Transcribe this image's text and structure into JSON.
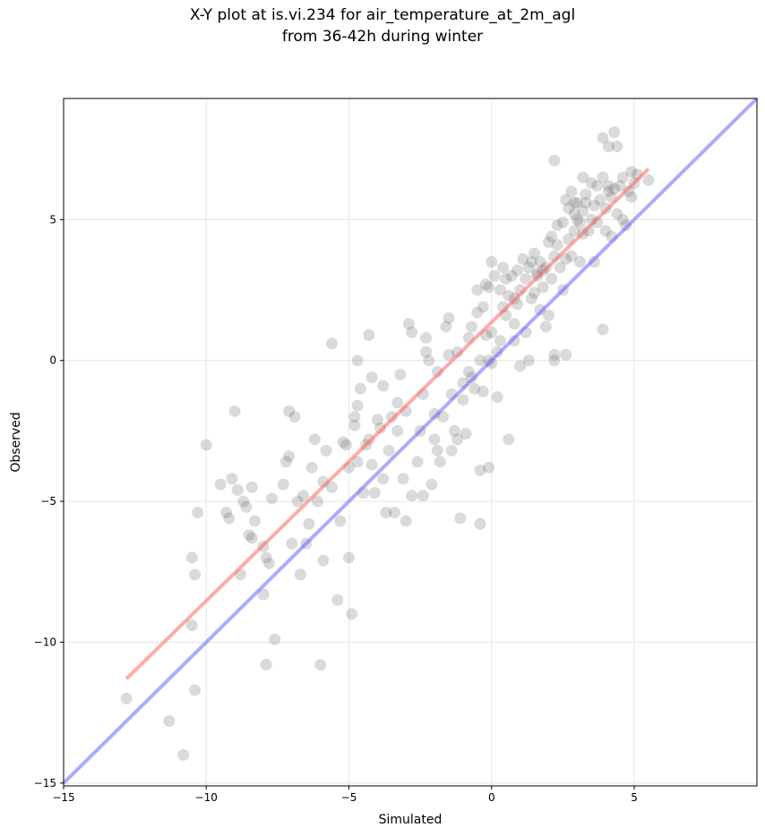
{
  "chart_data": {
    "type": "scatter",
    "title": "X-Y plot at is.vi.234 for air_temperature_at_2m_agl",
    "subtitle": "from 36-42h during winter",
    "xlabel": "Simulated",
    "ylabel": "Observed",
    "xlim": [
      -15,
      9.3
    ],
    "ylim": [
      -15.1,
      9.3
    ],
    "xticks": [
      -15,
      -10,
      -5,
      0,
      5
    ],
    "yticks": [
      -15,
      -10,
      -5,
      0,
      5
    ],
    "grid": true,
    "colors": {
      "points": "#555555",
      "fit_line": "#ff6666",
      "identity_line": "#6666ff",
      "grid": "#e6e6e6"
    },
    "lines": [
      {
        "kind": "fit",
        "x": [
          -12.8,
          5.5
        ],
        "y": [
          -11.3,
          6.8
        ]
      },
      {
        "kind": "identity",
        "x": [
          -15,
          9.3
        ],
        "y": [
          -15,
          9.3
        ]
      }
    ],
    "points": [
      [
        -12.8,
        -12.0
      ],
      [
        -11.3,
        -12.8
      ],
      [
        -10.8,
        -14.0
      ],
      [
        -10.4,
        -11.7
      ],
      [
        -10.5,
        -9.4
      ],
      [
        -10.4,
        -7.6
      ],
      [
        -10.5,
        -7.0
      ],
      [
        -10.3,
        -5.4
      ],
      [
        -10.0,
        -3.0
      ],
      [
        -9.5,
        -4.4
      ],
      [
        -9.3,
        -5.4
      ],
      [
        -9.2,
        -5.6
      ],
      [
        -9.1,
        -4.2
      ],
      [
        -9.0,
        -1.8
      ],
      [
        -8.9,
        -4.6
      ],
      [
        -8.8,
        -7.6
      ],
      [
        -8.7,
        -5.0
      ],
      [
        -8.6,
        -5.2
      ],
      [
        -8.5,
        -6.2
      ],
      [
        -8.4,
        -6.3
      ],
      [
        -8.4,
        -4.5
      ],
      [
        -8.3,
        -5.7
      ],
      [
        -8.0,
        -6.6
      ],
      [
        -8.0,
        -8.3
      ],
      [
        -7.9,
        -7.0
      ],
      [
        -7.8,
        -7.2
      ],
      [
        -7.9,
        -10.8
      ],
      [
        -7.7,
        -4.9
      ],
      [
        -7.6,
        -9.9
      ],
      [
        -7.3,
        -4.4
      ],
      [
        -7.2,
        -3.6
      ],
      [
        -7.1,
        -3.4
      ],
      [
        -7.0,
        -6.5
      ],
      [
        -7.1,
        -1.8
      ],
      [
        -6.9,
        -2.0
      ],
      [
        -6.8,
        -5.0
      ],
      [
        -6.7,
        -7.6
      ],
      [
        -6.6,
        -4.8
      ],
      [
        -6.5,
        -6.5
      ],
      [
        -6.4,
        -5.8
      ],
      [
        -6.3,
        -3.8
      ],
      [
        -6.2,
        -2.8
      ],
      [
        -6.1,
        -5.0
      ],
      [
        -5.9,
        -4.3
      ],
      [
        -5.9,
        -7.1
      ],
      [
        -5.8,
        -3.2
      ],
      [
        -6.0,
        -10.8
      ],
      [
        -5.6,
        -4.5
      ],
      [
        -5.6,
        0.6
      ],
      [
        -5.4,
        -8.5
      ],
      [
        -5.3,
        -5.7
      ],
      [
        -5.2,
        -2.9
      ],
      [
        -5.1,
        -3.0
      ],
      [
        -5.0,
        -3.8
      ],
      [
        -5.0,
        -7.0
      ],
      [
        -4.9,
        -9.0
      ],
      [
        -4.8,
        -2.0
      ],
      [
        -4.8,
        -2.3
      ],
      [
        -4.7,
        -1.6
      ],
      [
        -4.7,
        -3.6
      ],
      [
        -4.7,
        0.0
      ],
      [
        -4.6,
        -1.0
      ],
      [
        -4.5,
        -4.7
      ],
      [
        -4.4,
        -3.0
      ],
      [
        -4.3,
        -2.8
      ],
      [
        -4.2,
        -0.6
      ],
      [
        -4.2,
        -3.7
      ],
      [
        -4.3,
        0.9
      ],
      [
        -4.1,
        -4.7
      ],
      [
        -4.0,
        -2.1
      ],
      [
        -3.9,
        -2.4
      ],
      [
        -3.8,
        -0.9
      ],
      [
        -3.8,
        -4.2
      ],
      [
        -3.7,
        -5.4
      ],
      [
        -3.6,
        -3.2
      ],
      [
        -3.5,
        -2.0
      ],
      [
        -3.4,
        -5.4
      ],
      [
        -3.3,
        -2.5
      ],
      [
        -3.3,
        -1.5
      ],
      [
        -3.2,
        -0.5
      ],
      [
        -3.1,
        -4.2
      ],
      [
        -3.0,
        -1.8
      ],
      [
        -3.0,
        -5.7
      ],
      [
        -2.9,
        1.3
      ],
      [
        -2.8,
        1.0
      ],
      [
        -2.8,
        -4.8
      ],
      [
        -2.6,
        -3.6
      ],
      [
        -2.5,
        -2.5
      ],
      [
        -2.4,
        -4.8
      ],
      [
        -2.4,
        -1.2
      ],
      [
        -2.3,
        0.3
      ],
      [
        -2.3,
        0.8
      ],
      [
        -2.2,
        0.0
      ],
      [
        -2.1,
        -4.4
      ],
      [
        -2.0,
        -2.8
      ],
      [
        -2.0,
        -1.9
      ],
      [
        -1.9,
        -3.2
      ],
      [
        -1.9,
        -0.4
      ],
      [
        -1.8,
        -3.6
      ],
      [
        -1.7,
        -2.0
      ],
      [
        -1.6,
        1.2
      ],
      [
        -1.5,
        0.2
      ],
      [
        -1.5,
        1.5
      ],
      [
        -1.4,
        -1.2
      ],
      [
        -1.4,
        -3.2
      ],
      [
        -1.3,
        -2.5
      ],
      [
        -1.2,
        -2.8
      ],
      [
        -1.2,
        0.3
      ],
      [
        -1.1,
        -5.6
      ],
      [
        -1.0,
        -1.4
      ],
      [
        -1.0,
        -0.8
      ],
      [
        -0.9,
        -2.6
      ],
      [
        -0.8,
        -0.4
      ],
      [
        -0.8,
        0.8
      ],
      [
        -0.7,
        1.2
      ],
      [
        -0.7,
        -0.6
      ],
      [
        -0.6,
        -1.0
      ],
      [
        -0.5,
        1.7
      ],
      [
        -0.5,
        2.5
      ],
      [
        -0.4,
        -3.9
      ],
      [
        -0.4,
        -5.8
      ],
      [
        -0.4,
        0.0
      ],
      [
        -0.3,
        -1.1
      ],
      [
        -0.3,
        1.9
      ],
      [
        -0.2,
        0.9
      ],
      [
        -0.2,
        2.7
      ],
      [
        -0.1,
        0.0
      ],
      [
        -0.1,
        -3.8
      ],
      [
        0.0,
        -0.1
      ],
      [
        0.0,
        1.0
      ],
      [
        0.0,
        3.5
      ],
      [
        0.1,
        3.0
      ],
      [
        0.2,
        0.3
      ],
      [
        0.2,
        -1.3
      ],
      [
        0.3,
        0.7
      ],
      [
        0.3,
        2.5
      ],
      [
        0.4,
        3.3
      ],
      [
        0.5,
        2.9
      ],
      [
        0.5,
        1.6
      ],
      [
        0.6,
        -2.8
      ],
      [
        0.6,
        2.3
      ],
      [
        0.7,
        3.0
      ],
      [
        0.8,
        0.7
      ],
      [
        0.8,
        1.3
      ],
      [
        0.9,
        2.0
      ],
      [
        0.9,
        3.2
      ],
      [
        1.0,
        -0.2
      ],
      [
        1.0,
        2.5
      ],
      [
        1.1,
        3.6
      ],
      [
        1.2,
        1.0
      ],
      [
        1.2,
        2.9
      ],
      [
        1.3,
        0.0
      ],
      [
        1.3,
        3.3
      ],
      [
        1.4,
        2.2
      ],
      [
        1.5,
        3.8
      ],
      [
        1.5,
        2.4
      ],
      [
        1.6,
        3.0
      ],
      [
        1.7,
        1.8
      ],
      [
        1.7,
        3.5
      ],
      [
        1.8,
        2.6
      ],
      [
        1.9,
        1.2
      ],
      [
        1.9,
        3.3
      ],
      [
        2.0,
        4.2
      ],
      [
        2.0,
        1.6
      ],
      [
        2.1,
        2.9
      ],
      [
        2.1,
        4.4
      ],
      [
        2.2,
        0.2
      ],
      [
        2.2,
        0.0
      ],
      [
        2.2,
        3.7
      ],
      [
        2.2,
        7.1
      ],
      [
        2.3,
        4.8
      ],
      [
        2.4,
        3.3
      ],
      [
        2.5,
        4.9
      ],
      [
        2.5,
        2.5
      ],
      [
        2.6,
        0.2
      ],
      [
        2.6,
        3.6
      ],
      [
        2.7,
        4.3
      ],
      [
        2.7,
        5.4
      ],
      [
        2.8,
        3.7
      ],
      [
        2.8,
        6.0
      ],
      [
        2.9,
        4.6
      ],
      [
        2.9,
        5.2
      ],
      [
        3.0,
        5.6
      ],
      [
        3.1,
        4.9
      ],
      [
        3.1,
        3.5
      ],
      [
        3.2,
        6.5
      ],
      [
        3.2,
        5.3
      ],
      [
        3.3,
        5.9
      ],
      [
        3.4,
        4.6
      ],
      [
        3.5,
        6.3
      ],
      [
        3.5,
        5.0
      ],
      [
        3.6,
        5.5
      ],
      [
        3.6,
        3.5
      ],
      [
        3.7,
        6.2
      ],
      [
        3.7,
        4.9
      ],
      [
        3.8,
        5.7
      ],
      [
        3.9,
        1.1
      ],
      [
        3.9,
        6.5
      ],
      [
        4.0,
        5.4
      ],
      [
        4.0,
        4.6
      ],
      [
        4.1,
        6.0
      ],
      [
        4.1,
        7.6
      ],
      [
        4.2,
        4.4
      ],
      [
        4.2,
        5.8
      ],
      [
        4.3,
        8.1
      ],
      [
        4.3,
        6.1
      ],
      [
        4.4,
        7.6
      ],
      [
        4.4,
        5.2
      ],
      [
        4.5,
        6.2
      ],
      [
        4.6,
        5.0
      ],
      [
        4.6,
        6.5
      ],
      [
        4.7,
        4.8
      ],
      [
        4.8,
        6.0
      ],
      [
        4.9,
        5.8
      ],
      [
        4.9,
        6.7
      ],
      [
        5.0,
        6.3
      ],
      [
        5.1,
        6.6
      ],
      [
        5.5,
        6.4
      ],
      [
        3.9,
        7.9
      ],
      [
        3.2,
        4.5
      ],
      [
        2.9,
        5.6
      ],
      [
        1.6,
        3.1
      ],
      [
        0.8,
        2.2
      ],
      [
        1.4,
        3.5
      ],
      [
        -0.1,
        2.6
      ],
      [
        3.0,
        5.0
      ],
      [
        3.3,
        5.6
      ],
      [
        4.1,
        6.2
      ],
      [
        2.6,
        5.7
      ],
      [
        2.3,
        4.1
      ],
      [
        1.8,
        3.2
      ],
      [
        0.4,
        1.9
      ]
    ]
  }
}
